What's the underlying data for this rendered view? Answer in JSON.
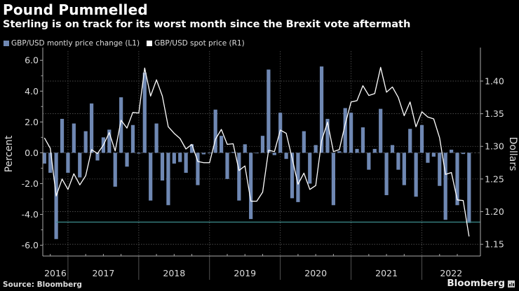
{
  "header": {
    "title": "Pound Pummelled",
    "subtitle": "Sterling is on track for its worst month since the Brexit vote aftermath"
  },
  "legend": [
    {
      "label": "GBP/USD montly price change (L1)",
      "color": "#6f88b3"
    },
    {
      "label": "GBP/USD spot price (R1)",
      "color": "#ffffff"
    }
  ],
  "footer": {
    "source": "Source: Bloomberg",
    "brand": "Bloomberg"
  },
  "chart_data": {
    "type": "bar+line",
    "title": "Pound Pummelled",
    "subtitle": "Sterling is on track for its worst month since the Brexit vote aftermath",
    "ylabel_left": "Percent",
    "ylabel_right": "Dollars",
    "ylim_left": [
      -6.7,
      6.6
    ],
    "ylim_right": [
      1.132,
      1.446
    ],
    "yticks_left": [
      "6.0",
      "4.0",
      "2.0",
      "0.0",
      "-2.0",
      "-4.0",
      "-6.0"
    ],
    "yticks_right": [
      "1.40",
      "1.35",
      "1.30",
      "1.25",
      "1.20",
      "1.15"
    ],
    "xtick_labels": [
      "2016",
      "2017",
      "2018",
      "2019",
      "2020",
      "2021",
      "2022"
    ],
    "grid": true,
    "legend_position": "top-left",
    "reference_line_left": -4.5,
    "reference_line_color": "#3d8f8f",
    "x": [
      "2016-08",
      "2016-09",
      "2016-10",
      "2016-11",
      "2016-12",
      "2017-01",
      "2017-02",
      "2017-03",
      "2017-04",
      "2017-05",
      "2017-06",
      "2017-07",
      "2017-08",
      "2017-09",
      "2017-10",
      "2017-11",
      "2017-12",
      "2018-01",
      "2018-02",
      "2018-03",
      "2018-04",
      "2018-05",
      "2018-06",
      "2018-07",
      "2018-08",
      "2018-09",
      "2018-10",
      "2018-11",
      "2018-12",
      "2019-01",
      "2019-02",
      "2019-03",
      "2019-04",
      "2019-05",
      "2019-06",
      "2019-07",
      "2019-08",
      "2019-09",
      "2019-10",
      "2019-11",
      "2019-12",
      "2020-01",
      "2020-02",
      "2020-03",
      "2020-04",
      "2020-05",
      "2020-06",
      "2020-07",
      "2020-08",
      "2020-09",
      "2020-10",
      "2020-11",
      "2020-12",
      "2021-01",
      "2021-02",
      "2021-03",
      "2021-04",
      "2021-05",
      "2021-06",
      "2021-07",
      "2021-08",
      "2021-09",
      "2021-10",
      "2021-11",
      "2021-12",
      "2022-01",
      "2022-02",
      "2022-03",
      "2022-04",
      "2022-05",
      "2022-06",
      "2022-07",
      "2022-08"
    ],
    "series": [
      {
        "name": "GBP/USD montly price change (L1)",
        "type": "bar",
        "axis": "left",
        "color": "#6f88b3",
        "values": [
          -0.7,
          -1.3,
          -5.6,
          2.2,
          -1.3,
          1.9,
          -1.6,
          1.4,
          3.2,
          -0.5,
          1.0,
          1.5,
          -2.2,
          3.6,
          -0.9,
          1.8,
          -0.05,
          5.2,
          -3.1,
          1.9,
          -1.8,
          -3.4,
          -0.7,
          -0.6,
          -1.3,
          0.55,
          -2.1,
          -0.1,
          0.0,
          2.8,
          1.1,
          -1.7,
          0.05,
          -3.1,
          0.55,
          -4.3,
          0.0,
          1.1,
          5.4,
          -0.15,
          2.6,
          -0.4,
          -2.95,
          -3.2,
          1.4,
          -2.0,
          0.5,
          5.6,
          2.2,
          -3.4,
          0.1,
          2.9,
          2.6,
          0.25,
          1.65,
          -1.1,
          0.25,
          2.85,
          -2.75,
          0.5,
          -1.1,
          -2.1,
          1.55,
          -2.85,
          1.8,
          -0.65,
          -0.25,
          -2.15,
          -4.35,
          0.2,
          -3.4,
          -0.08,
          -4.55
        ]
      },
      {
        "name": "GBP/USD spot price (R1)",
        "type": "line",
        "axis": "right",
        "color": "#ffffff",
        "values": [
          1.313,
          1.297,
          1.224,
          1.25,
          1.234,
          1.258,
          1.241,
          1.255,
          1.295,
          1.289,
          1.302,
          1.321,
          1.293,
          1.34,
          1.328,
          1.352,
          1.351,
          1.42,
          1.377,
          1.402,
          1.377,
          1.33,
          1.32,
          1.312,
          1.296,
          1.303,
          1.277,
          1.275,
          1.275,
          1.311,
          1.326,
          1.303,
          1.304,
          1.263,
          1.27,
          1.216,
          1.216,
          1.23,
          1.294,
          1.292,
          1.325,
          1.32,
          1.282,
          1.242,
          1.259,
          1.234,
          1.24,
          1.309,
          1.337,
          1.292,
          1.295,
          1.334,
          1.368,
          1.37,
          1.393,
          1.378,
          1.381,
          1.421,
          1.383,
          1.391,
          1.375,
          1.347,
          1.368,
          1.33,
          1.353,
          1.345,
          1.342,
          1.313,
          1.257,
          1.26,
          1.218,
          1.217,
          1.162
        ]
      }
    ]
  }
}
